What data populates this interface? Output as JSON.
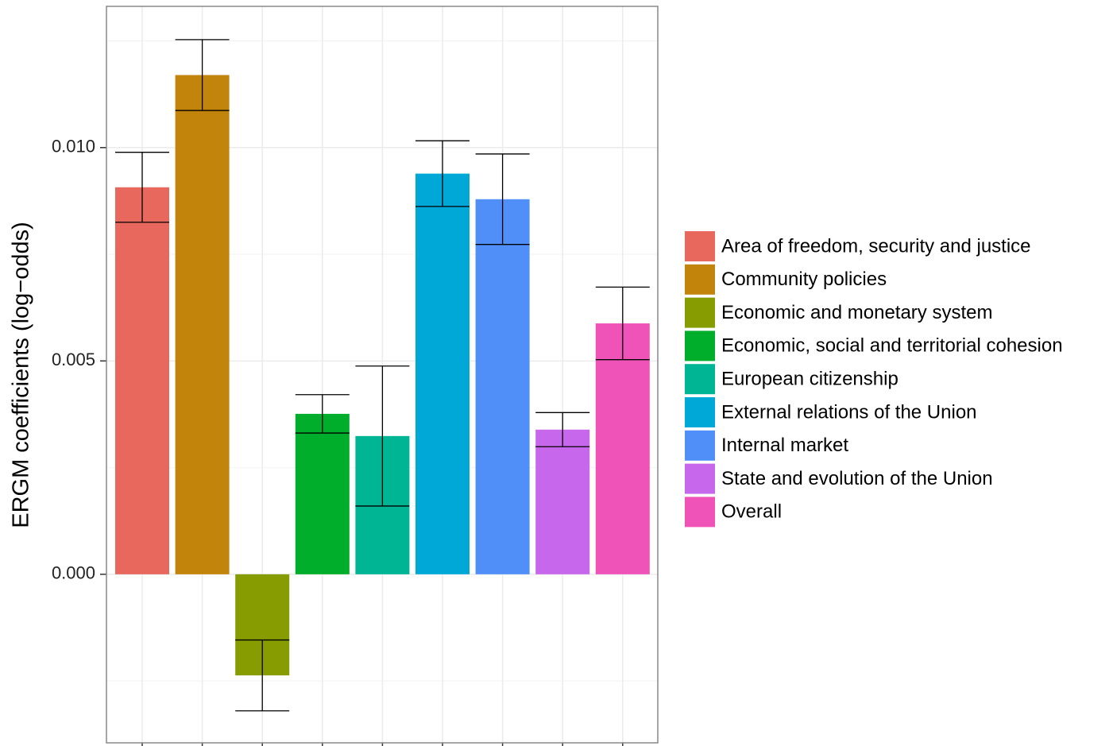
{
  "chart_data": {
    "type": "bar",
    "y_label": "ERGM coefficients (log−odds)",
    "categories": [
      "Area of freedom, security and justice",
      "Community policies",
      "Economic and monetary system",
      "Economic, social and territorial cohesion",
      "European citizenship",
      "External relations of the Union",
      "Internal market",
      "State and evolution of the Union",
      "Overall"
    ],
    "values": [
      0.00907,
      0.0117,
      -0.00237,
      0.00376,
      0.00324,
      0.00939,
      0.00879,
      0.00339,
      0.00588
    ],
    "errors": [
      0.00082,
      0.00083,
      0.00083,
      0.00045,
      0.00164,
      0.00077,
      0.00106,
      0.0004,
      0.00085
    ],
    "colors": [
      "#e9685e",
      "#c2840a",
      "#879c00",
      "#00ae2b",
      "#00b594",
      "#00a8d7",
      "#508ff8",
      "#c768ec",
      "#ef53b8"
    ],
    "ylim": [
      -0.00395,
      0.01331
    ],
    "yticks": [
      {
        "value": 0,
        "label": "0.000"
      },
      {
        "value": 0.005,
        "label": "0.005"
      },
      {
        "value": 0.01,
        "label": "0.010"
      }
    ],
    "minor_yticks": [
      -0.0025,
      0.0025,
      0.0075,
      0.0125
    ],
    "grid": true
  }
}
